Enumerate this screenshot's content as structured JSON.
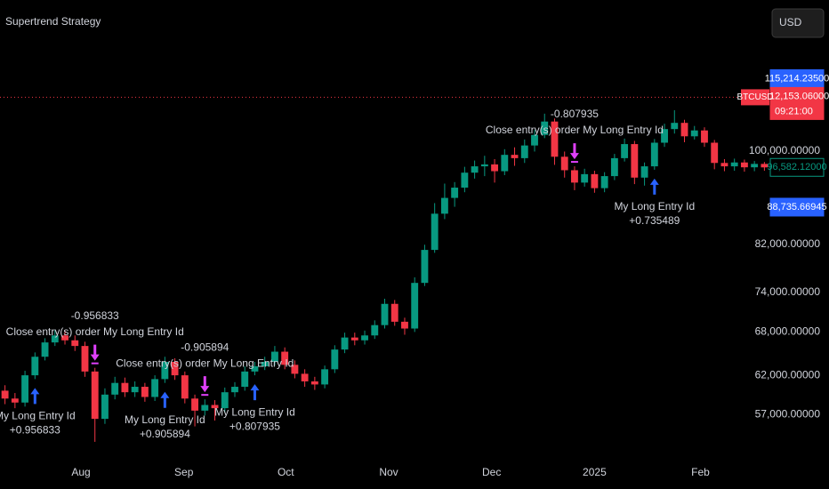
{
  "chart_data": {
    "type": "candlestick",
    "title": "Supertrend Strategy",
    "currency": "USD",
    "log_scale": true,
    "grid": false,
    "up_color": "#089981",
    "down_color": "#f23645",
    "open": [
      60000,
      59000,
      58500,
      62000,
      64500,
      66500,
      67500,
      66800,
      66000,
      62500,
      56500,
      59500,
      61000,
      59800,
      60500,
      59200,
      61500,
      63800,
      62000,
      59000,
      57500,
      58200,
      57800,
      59800,
      60500,
      62500,
      63200,
      63800,
      65200,
      63400,
      62200,
      61200,
      60800,
      62800,
      65500,
      67200,
      66800,
      67500,
      69000,
      72200,
      69500,
      68500,
      75500,
      81000,
      87500,
      90500,
      92500,
      95500,
      96800,
      97200,
      95800,
      99200,
      98500,
      101200,
      103500,
      106500,
      98800,
      96000,
      93500,
      95200,
      92400,
      94800,
      98500,
      101500,
      94500,
      96800,
      101800,
      104800,
      106200,
      103200,
      104500,
      101800,
      97500,
      96800,
      97600,
      96600,
      97300
    ],
    "high": [
      60700,
      59700,
      62600,
      65100,
      67100,
      68300,
      68200,
      67500,
      66600,
      63000,
      60300,
      61800,
      61700,
      61200,
      61000,
      62000,
      64500,
      64300,
      62500,
      59500,
      58900,
      58800,
      60400,
      61100,
      63200,
      63800,
      64500,
      66000,
      65800,
      64000,
      62800,
      61800,
      63300,
      66100,
      67900,
      67900,
      68200,
      69700,
      73000,
      72800,
      70100,
      76400,
      81900,
      89500,
      93300,
      93600,
      96700,
      98000,
      99000,
      98300,
      100400,
      100800,
      102500,
      104600,
      108300,
      107200,
      99900,
      96800,
      96300,
      95900,
      95600,
      99400,
      102700,
      102200,
      97600,
      102600,
      106000,
      109100,
      106900,
      105500,
      105200,
      102400,
      98300,
      98400,
      98200,
      97900,
      97700
    ],
    "low": [
      58300,
      57800,
      58000,
      61500,
      64000,
      66000,
      66200,
      65300,
      61800,
      53800,
      55900,
      58900,
      59200,
      59200,
      58600,
      58700,
      61000,
      61400,
      58400,
      55600,
      56900,
      56300,
      57300,
      59200,
      60000,
      62000,
      62700,
      63300,
      62800,
      61600,
      60500,
      60100,
      60300,
      62300,
      65000,
      66100,
      66200,
      67000,
      68500,
      68900,
      67600,
      68000,
      75000,
      80500,
      86500,
      88800,
      91600,
      94300,
      94800,
      93500,
      95000,
      96900,
      97500,
      99900,
      102800,
      97100,
      94500,
      92000,
      92700,
      91500,
      91600,
      94000,
      97800,
      93200,
      92900,
      96100,
      100900,
      103800,
      101900,
      102500,
      100900,
      96200,
      95800,
      95900,
      95700,
      95800,
      95900
    ],
    "close": [
      59000,
      58500,
      62000,
      64500,
      66500,
      67500,
      66800,
      66000,
      62500,
      56500,
      59500,
      61000,
      59800,
      60500,
      59200,
      61500,
      63800,
      62000,
      59000,
      57500,
      58200,
      57800,
      59800,
      60500,
      62500,
      63200,
      63800,
      65200,
      63400,
      62200,
      61200,
      60800,
      62800,
      65500,
      67200,
      66800,
      67500,
      69000,
      72200,
      69500,
      68500,
      75500,
      81000,
      87500,
      90500,
      92500,
      95500,
      96800,
      97200,
      95800,
      99200,
      98500,
      101200,
      103500,
      106500,
      98800,
      96000,
      93500,
      95200,
      92400,
      94800,
      98500,
      101500,
      94500,
      96800,
      101800,
      104800,
      106200,
      103200,
      104500,
      101800,
      97500,
      96800,
      97600,
      96600,
      97300,
      96582
    ],
    "ylim": [
      51500,
      138000
    ],
    "yticks": [
      {
        "value": 57000,
        "label": "57,000.00000"
      },
      {
        "value": 62000,
        "label": "62,000.00000"
      },
      {
        "value": 68000,
        "label": "68,000.00000"
      },
      {
        "value": 74000,
        "label": "74,000.00000"
      },
      {
        "value": 82000,
        "label": "82,000.00000"
      },
      {
        "value": 100000,
        "label": "100,000.00000"
      }
    ],
    "xlim": [
      -0.5,
      76.5
    ],
    "xticks": [
      {
        "value": 7.6,
        "label": "Aug"
      },
      {
        "value": 17.9,
        "label": "Sep"
      },
      {
        "value": 28.1,
        "label": "Oct"
      },
      {
        "value": 38.4,
        "label": "Nov"
      },
      {
        "value": 48.7,
        "label": "Dec"
      },
      {
        "value": 59,
        "label": "2025"
      },
      {
        "value": 69.6,
        "label": "Feb"
      }
    ],
    "price_labels": [
      {
        "value": 115214.235,
        "label": "115,214.23500",
        "color": "#2962ff"
      },
      {
        "value": 112153.06,
        "label": "112,153.06000",
        "color": "#f23645",
        "symbol": "BTCUSD",
        "countdown": "09:21:00",
        "line": true
      },
      {
        "value": 96582.12,
        "label": "96,582.12000",
        "color": "#089981",
        "outline": true
      },
      {
        "value": 88735.66945,
        "label": "88,735.66945",
        "color": "#2962ff"
      }
    ],
    "trades": [
      {
        "entry_index": 3,
        "entry_text": "My Long Entry Id",
        "entry_qty": "+0.956833",
        "exit_index": 9,
        "exit_text": "Close entry(s) order My Long Entry Id",
        "exit_qty": "-0.956833"
      },
      {
        "entry_index": 16,
        "entry_text": "My Long Entry Id",
        "entry_qty": "+0.905894",
        "exit_index": 20,
        "exit_text": "Close entry(s) order My Long Entry Id",
        "exit_qty": "-0.905894"
      },
      {
        "entry_index": 25,
        "entry_text": "My Long Entry Id",
        "entry_qty": "+0.807935",
        "exit_index": 57,
        "exit_text": "Close entry(s) order My Long Entry Id",
        "exit_qty": "-0.807935"
      },
      {
        "entry_index": 65,
        "entry_text": "My Long Entry Id",
        "entry_qty": "+0.735489"
      }
    ]
  }
}
